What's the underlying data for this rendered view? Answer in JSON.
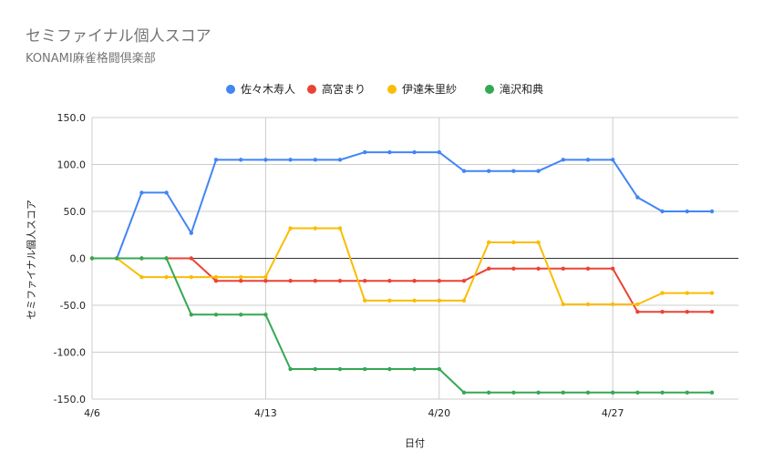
{
  "chart_data": {
    "type": "line",
    "title": "セミファイナル個人スコア",
    "subtitle": "KONAMI麻雀格闘倶楽部",
    "xlabel": "日付",
    "ylabel": "セミファイナル個人スコア",
    "ylim": [
      -150,
      150
    ],
    "yticks": [
      150,
      100,
      50,
      0,
      -50,
      -100,
      -150
    ],
    "ytick_labels": [
      "150.0",
      "100.0",
      "50.0",
      "0.0",
      "-50.0",
      "-100.0",
      "-150.0"
    ],
    "xticks": [
      "4/6",
      "4/13",
      "4/20",
      "4/27"
    ],
    "x": [
      "4/6",
      "4/7",
      "4/8",
      "4/9",
      "4/10",
      "4/11",
      "4/12",
      "4/13",
      "4/14",
      "4/15",
      "4/16",
      "4/17",
      "4/18",
      "4/19",
      "4/20",
      "4/21",
      "4/22",
      "4/23",
      "4/24",
      "4/25",
      "4/26",
      "4/27",
      "4/28",
      "4/29",
      "4/30",
      "5/1"
    ],
    "grid": true,
    "legend_position": "top",
    "series": [
      {
        "name": "佐々木寿人",
        "color": "#4285f4",
        "values": [
          0,
          0,
          70,
          70,
          27,
          105,
          105,
          105,
          105,
          105,
          105,
          113,
          113,
          113,
          113,
          93,
          93,
          93,
          93,
          105,
          105,
          105,
          65,
          50,
          50,
          50
        ]
      },
      {
        "name": "高宮まり",
        "color": "#ea4335",
        "values": [
          0,
          0,
          0,
          0,
          0,
          -24,
          -24,
          -24,
          -24,
          -24,
          -24,
          -24,
          -24,
          -24,
          -24,
          -24,
          -11,
          -11,
          -11,
          -11,
          -11,
          -11,
          -57,
          -57,
          -57,
          -57
        ]
      },
      {
        "name": "伊達朱里紗",
        "color": "#fbbc04",
        "values": [
          0,
          0,
          -20,
          -20,
          -20,
          -20,
          -20,
          -20,
          32,
          32,
          32,
          -45,
          -45,
          -45,
          -45,
          -45,
          17,
          17,
          17,
          -49,
          -49,
          -49,
          -49,
          -37,
          -37,
          -37
        ]
      },
      {
        "name": "滝沢和典",
        "color": "#34a853",
        "values": [
          0,
          0,
          0,
          0,
          -60,
          -60,
          -60,
          -60,
          -118,
          -118,
          -118,
          -118,
          -118,
          -118,
          -118,
          -143,
          -143,
          -143,
          -143,
          -143,
          -143,
          -143,
          -143,
          -143,
          -143,
          -143
        ]
      }
    ]
  }
}
